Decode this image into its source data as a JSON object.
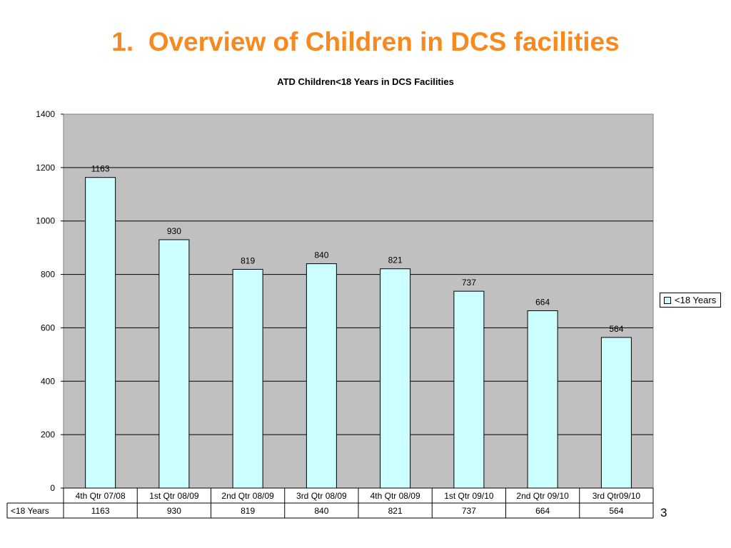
{
  "slide": {
    "title": "1.  Overview of Children in DCS facilities",
    "page_number": "3"
  },
  "colors": {
    "title": "#f7891f",
    "plot_background": "#c0c0c0",
    "bar_fill": "#ccffff",
    "bar_stroke": "#000000",
    "gridline": "#000000"
  },
  "chart_data": {
    "type": "bar",
    "title": "ATD Children<18 Years in DCS Facilities",
    "categories": [
      "4th Qtr 07/08",
      "1st Qtr 08/09",
      "2nd Qtr 08/09",
      "3rd Qtr 08/09",
      "4th Qtr 08/09",
      "1st Qtr 09/10",
      "2nd Qtr 09/10",
      "3rd Qtr09/10"
    ],
    "series": [
      {
        "name": "<18 Years",
        "values": [
          1163,
          930,
          819,
          840,
          821,
          737,
          664,
          564
        ]
      }
    ],
    "ylim": [
      0,
      1400
    ],
    "yticks": [
      0,
      200,
      400,
      600,
      800,
      1000,
      1200,
      1400
    ],
    "grid": true,
    "data_labels": true,
    "legend_position": "right",
    "data_table": true
  }
}
